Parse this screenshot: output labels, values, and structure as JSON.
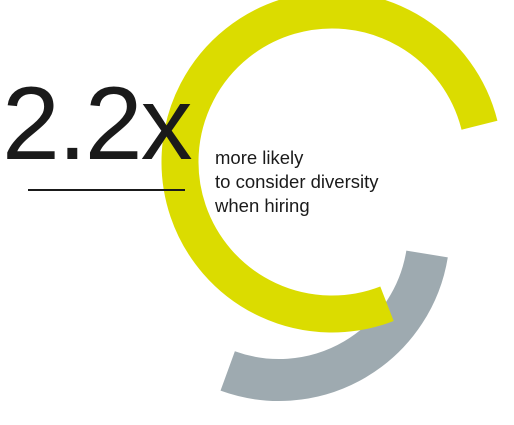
{
  "stat": {
    "value": "2.2x",
    "caption_lines": [
      "more likely",
      "to consider diversity",
      "when hiring"
    ]
  },
  "colors": {
    "primary_arc": "#dbdc00",
    "secondary_arc": "#9eaab0",
    "text": "#1a1a1a",
    "background": "#ffffff"
  },
  "chart_data": {
    "type": "radial-bar",
    "value": 2.2,
    "unit": "x",
    "series": [
      {
        "role": "highlight",
        "color": "#dbdc00",
        "arc_fraction": 0.77
      },
      {
        "role": "baseline",
        "color": "#9eaab0",
        "arc_fraction": 0.28
      }
    ]
  }
}
